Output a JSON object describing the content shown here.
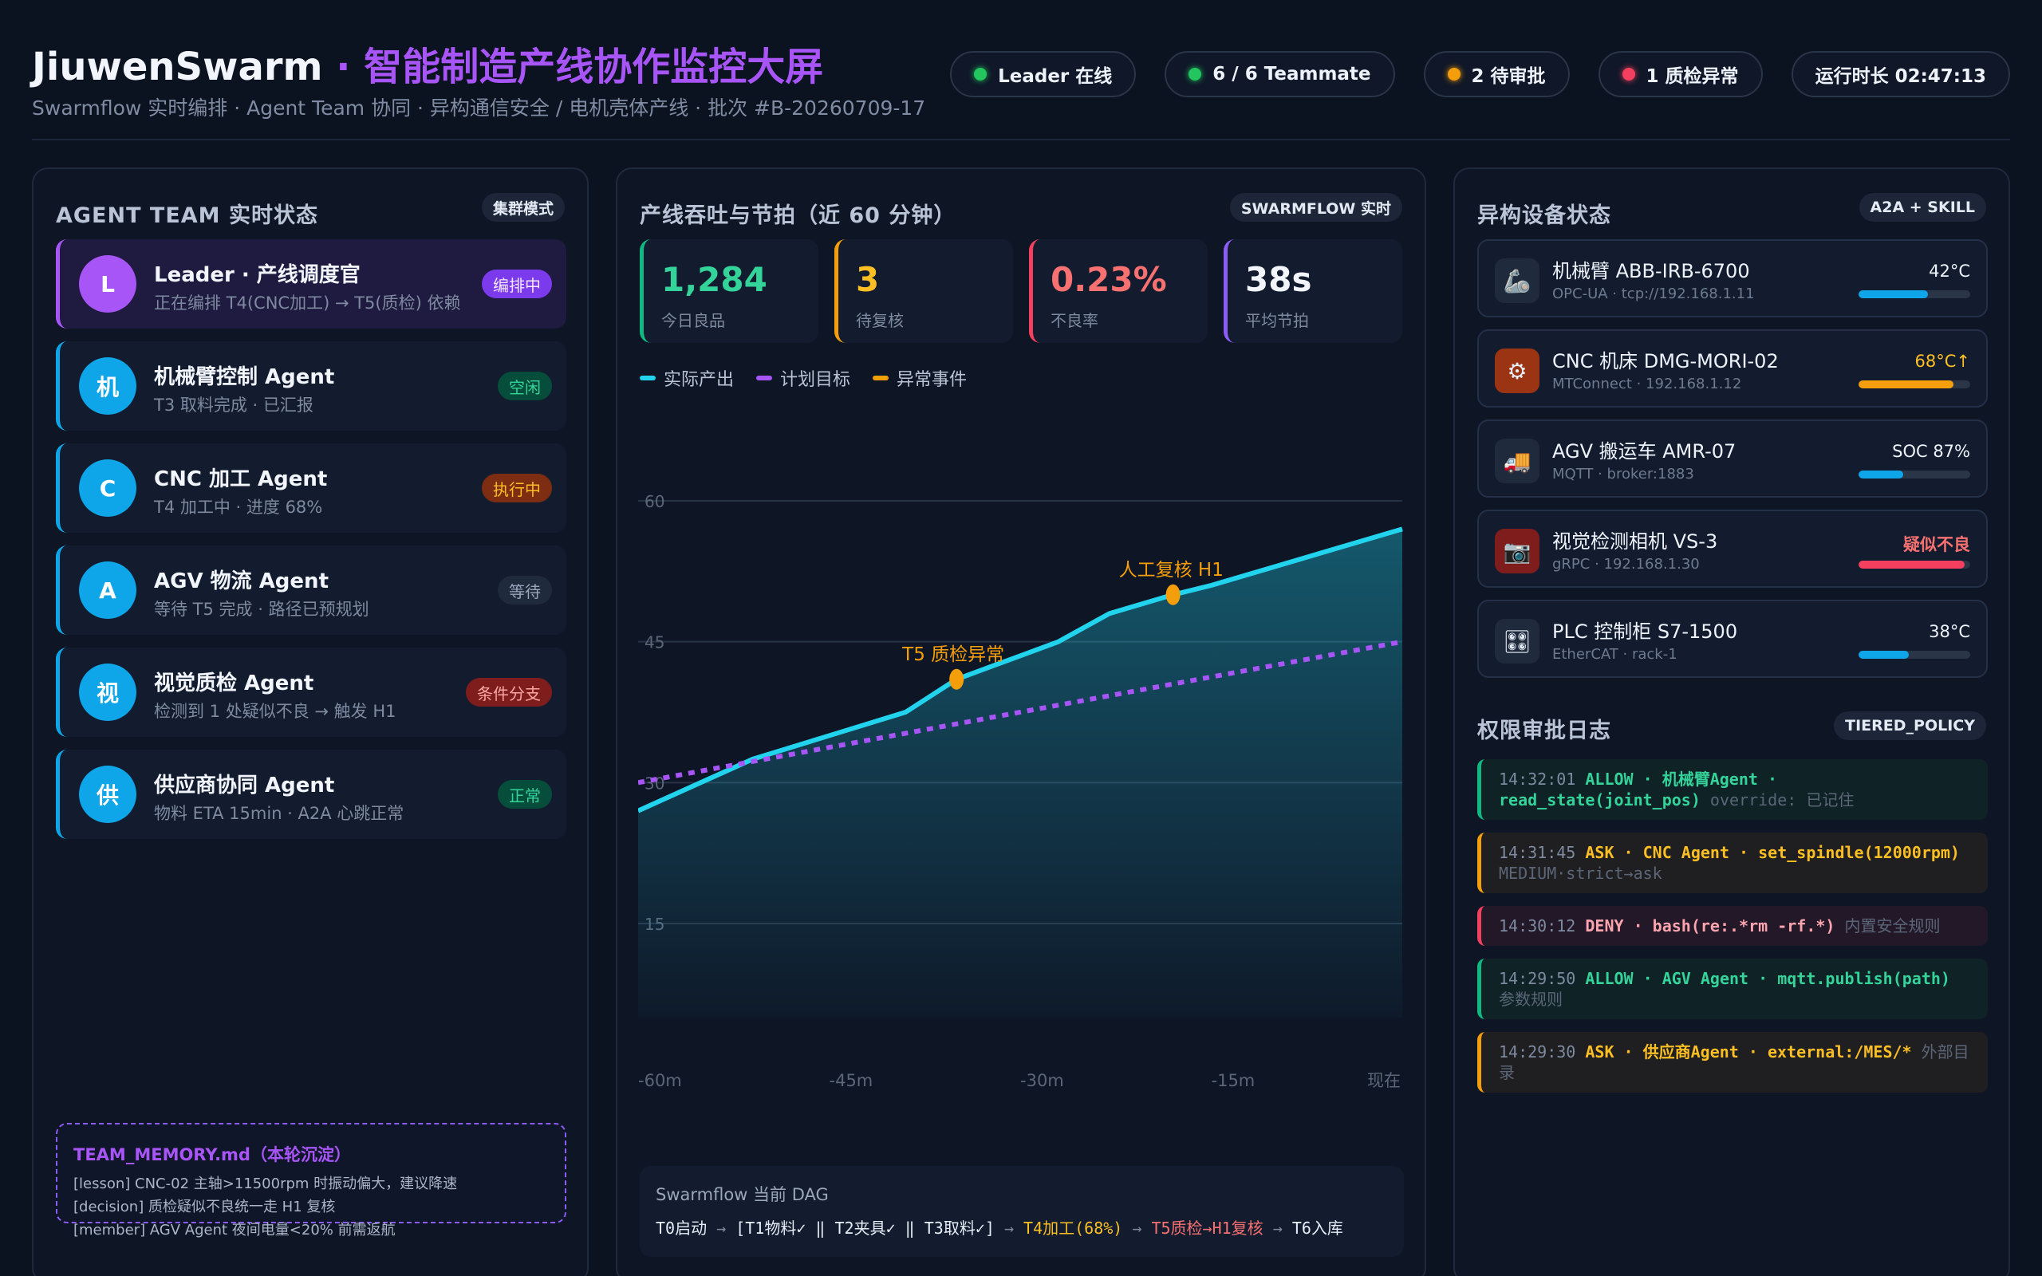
{
  "header": {
    "brand": "JiuwenSwarm",
    "title_suffix": " · 智能制造产线协作监控大屏",
    "subtitle": "Swarmflow 实时编排 · Agent Team 协同 · 异构通信安全 / 电机壳体产线 · 批次 #B-20260709-17",
    "pills": [
      {
        "label": "Leader 在线",
        "dot": "#22c55e"
      },
      {
        "label": "6 / 6 Teammate",
        "dot": "#22c55e"
      },
      {
        "label": "2 待审批",
        "dot": "#f59e0b"
      },
      {
        "label": "1 质检异常",
        "dot": "#f43f5e"
      },
      {
        "label": "运行时长 02:47:13",
        "dot": ""
      }
    ]
  },
  "team": {
    "title": "AGENT TEAM 实时状态",
    "tag": "集群模式",
    "agents": [
      {
        "avatar": "L",
        "name": "Leader · 产线调度官",
        "sub": "正在编排 T4(CNC加工) → T5(质检) 依赖",
        "badge": "编排中",
        "badge_bg": "#7c3aed",
        "badge_fg": "#f3e8ff"
      },
      {
        "avatar": "机",
        "name": "机械臂控制 Agent",
        "sub": "T3 取料完成 · 已汇报",
        "badge": "空闲",
        "badge_bg": "#064e3b",
        "badge_fg": "#34d399"
      },
      {
        "avatar": "C",
        "name": "CNC 加工 Agent",
        "sub": "T4 加工中 · 进度 68%",
        "badge": "执行中",
        "badge_bg": "#7c2d12",
        "badge_fg": "#fbbf24"
      },
      {
        "avatar": "A",
        "name": "AGV 物流 Agent",
        "sub": "等待 T5 完成 · 路径已预规划",
        "badge": "等待",
        "badge_bg": "#1f2a3d",
        "badge_fg": "#9aa6ba"
      },
      {
        "avatar": "视",
        "name": "视觉质检 Agent",
        "sub": "检测到 1 处疑似不良 → 触发 H1",
        "badge": "条件分支",
        "badge_bg": "#7f1d1d",
        "badge_fg": "#fca5a5"
      },
      {
        "avatar": "供",
        "name": "供应商协同 Agent",
        "sub": "物料 ETA 15min · A2A 心跳正常",
        "badge": "正常",
        "badge_bg": "#064e3b",
        "badge_fg": "#34d399"
      }
    ],
    "memory": {
      "title": "TEAM_MEMORY.md（本轮沉淀）",
      "lines": [
        "[lesson] CNC-02 主轴>11500rpm 时振动偏大，建议降速",
        "[decision] 质检疑似不良统一走 H1 复核",
        "[member] AGV Agent 夜间电量<20% 前需返航"
      ]
    }
  },
  "throughput": {
    "title": "产线吞吐与节拍（近 60 分钟）",
    "tag": "SWARMFLOW 实时",
    "kpis": [
      {
        "value": "1,284",
        "label": "今日良品",
        "color": "#34d399"
      },
      {
        "value": "3",
        "label": "待复核",
        "color": "#fbbf24"
      },
      {
        "value": "0.23%",
        "label": "不良率",
        "color": "#f87171"
      },
      {
        "value": "38s",
        "label": "平均节拍",
        "color": "#f2f6fc"
      }
    ],
    "kpi_borders": [
      "#10b981",
      "#f59e0b",
      "#f43f5e",
      "#8b5cf6"
    ],
    "legend": [
      {
        "label": "实际产出",
        "color": "#22d3ee"
      },
      {
        "label": "计划目标",
        "color": "#a855f7"
      },
      {
        "label": "异常事件",
        "color": "#f59e0b"
      }
    ],
    "dag": {
      "title": "Swarmflow 当前 DAG",
      "parts": [
        {
          "text": "T0启动",
          "color": "#e6edf7"
        },
        {
          "text": " → ",
          "color": "#7d8aa0"
        },
        {
          "text": "[T1物料✓ ‖ T2夹具✓ ‖ T3取料✓]",
          "color": "#e6edf7"
        },
        {
          "text": " → ",
          "color": "#7d8aa0"
        },
        {
          "text": "T4加工(68%)",
          "color": "#fbbf24"
        },
        {
          "text": " → ",
          "color": "#7d8aa0"
        },
        {
          "text": "T5质检→H1复核",
          "color": "#f87171"
        },
        {
          "text": " → ",
          "color": "#7d8aa0"
        },
        {
          "text": "T6入库",
          "color": "#e6edf7"
        }
      ]
    }
  },
  "chart_data": {
    "type": "line",
    "x_ticks": [
      "-60m",
      "-45m",
      "-30m",
      "-15m",
      "现在"
    ],
    "x_range": [
      -60,
      0
    ],
    "y_ticks": [
      15,
      30,
      45,
      60
    ],
    "ylim": [
      10,
      60
    ],
    "grid": true,
    "legend_position": "top-left",
    "series": [
      {
        "name": "实际产出",
        "color": "#22d3ee",
        "type": "area",
        "x": [
          -60,
          -51,
          -45,
          -39,
          -35,
          -32,
          -27,
          -23,
          -18,
          -15,
          -10,
          -5,
          0
        ],
        "y": [
          27,
          32.5,
          35,
          37.5,
          41,
          42.5,
          45,
          48,
          50,
          51,
          53,
          55,
          57
        ]
      },
      {
        "name": "计划目标",
        "color": "#a855f7",
        "type": "dashed",
        "x": [
          -60,
          0
        ],
        "y": [
          30,
          45
        ]
      }
    ],
    "annotations": [
      {
        "label": "T5 质检异常",
        "x": -35,
        "y": 41,
        "color": "#f59e0b"
      },
      {
        "label": "人工复核 H1",
        "x": -18,
        "y": 50,
        "color": "#f59e0b"
      }
    ]
  },
  "devices": {
    "title": "异构设备状态",
    "tag": "A2A + SKILL",
    "items": [
      {
        "icon": "🦾",
        "icon_bg": "#1f2a3d",
        "name": "机械臂 ABB-IRB-6700",
        "sub": "OPC-UA · tcp://192.168.1.11",
        "value": "42°C",
        "value_color": "#eef3fb",
        "level": 0.62,
        "bar_color": "#0ea5e9"
      },
      {
        "icon": "⚙",
        "icon_bg": "#9a3412",
        "name": "CNC 机床 DMG-MORI-02",
        "sub": "MTConnect · 192.168.1.12",
        "value": "68°C↑",
        "value_color": "#fbbf24",
        "level": 0.85,
        "bar_color": "#f59e0b"
      },
      {
        "icon": "🚚",
        "icon_bg": "#1f2a3d",
        "name": "AGV 搬运车 AMR-07",
        "sub": "MQTT · broker:1883",
        "value": "SOC 87%",
        "value_color": "#eef3fb",
        "level": 0.4,
        "bar_color": "#0ea5e9"
      },
      {
        "icon": "📷",
        "icon_bg": "#7f1d1d",
        "name": "视觉检测相机 VS-3",
        "sub": "gRPC · 192.168.1.30",
        "value": "疑似不良",
        "value_color": "#f87171",
        "level": 0.95,
        "bar_color": "#f43f5e"
      },
      {
        "icon": "🎛",
        "icon_bg": "#1f2a3d",
        "name": "PLC 控制柜 S7-1500",
        "sub": "EtherCAT · rack-1",
        "value": "38°C",
        "value_color": "#eef3fb",
        "level": 0.45,
        "bar_color": "#0ea5e9"
      }
    ]
  },
  "approval": {
    "title": "权限审批日志",
    "tag": "TIERED_POLICY",
    "logs": [
      {
        "time": "14:32:01",
        "action": "ALLOW",
        "detail": " · 机械臂Agent · read_state(joint_pos)",
        "note": " override: 已记住",
        "color": "#34d399",
        "border": "#10b981",
        "bg": "#0f2226"
      },
      {
        "time": "14:31:45",
        "action": "ASK",
        "detail": " · CNC Agent · set_spindle(12000rpm)",
        "note": " MEDIUM·strict→ask",
        "color": "#fbbf24",
        "border": "#f59e0b",
        "bg": "#1f1e20"
      },
      {
        "time": "14:30:12",
        "action": "DENY",
        "detail": " · bash(re:.*rm -rf.*)",
        "note": " 内置安全规则",
        "color": "#fda4af",
        "border": "#f43f5e",
        "bg": "#221828"
      },
      {
        "time": "14:29:50",
        "action": "ALLOW",
        "detail": " · AGV Agent · mqtt.publish(path)",
        "note": " 参数规则",
        "color": "#34d399",
        "border": "#10b981",
        "bg": "#0f2226"
      },
      {
        "time": "14:29:30",
        "action": "ASK",
        "detail": " · 供应商Agent · external:/MES/*",
        "note": " 外部目录",
        "color": "#fbbf24",
        "border": "#f59e0b",
        "bg": "#1f1e20"
      }
    ]
  }
}
